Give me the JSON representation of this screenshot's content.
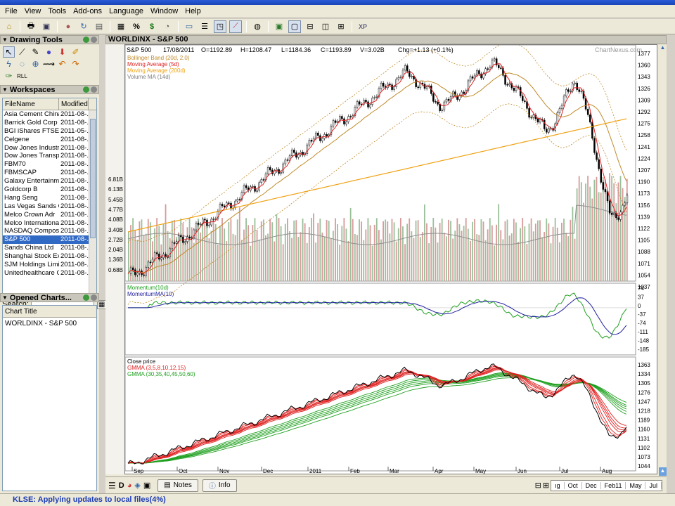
{
  "menu": [
    "File",
    "View",
    "Tools",
    "Add-ons",
    "Language",
    "Window",
    "Help"
  ],
  "drawing_tools": {
    "title": "Drawing Tools"
  },
  "workspaces": {
    "title": "Workspaces",
    "col_file": "FileName",
    "col_modified": "Modified",
    "rows": [
      {
        "name": "Asia Cement China ...",
        "modified": "2011-08-..."
      },
      {
        "name": "Barrick Gold Corp",
        "modified": "2011-08-..."
      },
      {
        "name": "BGI iShares FTSE ...",
        "modified": "2011-05-..."
      },
      {
        "name": "Celgene",
        "modified": "2011-08-..."
      },
      {
        "name": "Dow Jones Industrial",
        "modified": "2011-08-..."
      },
      {
        "name": "Dow Jones Transp...",
        "modified": "2011-08-..."
      },
      {
        "name": "FBM70",
        "modified": "2011-08-..."
      },
      {
        "name": "FBMSCAP",
        "modified": "2011-08-..."
      },
      {
        "name": "Galaxy Entertainme...",
        "modified": "2011-08-..."
      },
      {
        "name": "Goldcorp B",
        "modified": "2011-08-..."
      },
      {
        "name": "Hang Seng",
        "modified": "2011-08-..."
      },
      {
        "name": "Las Vegas Sands Cp",
        "modified": "2011-08-..."
      },
      {
        "name": "Melco Crown Adr",
        "modified": "2011-08-..."
      },
      {
        "name": "Melco International ...",
        "modified": "2011-08-..."
      },
      {
        "name": "NASDAQ Composite",
        "modified": "2011-08-..."
      },
      {
        "name": "S&P 500",
        "modified": "2011-08-...",
        "selected": true
      },
      {
        "name": "Sands China Ltd",
        "modified": "2011-08-..."
      },
      {
        "name": "Shanghai Stock Ex...",
        "modified": "2011-08-..."
      },
      {
        "name": "SJM Holdings Limited",
        "modified": "2011-08-..."
      },
      {
        "name": "Unitedhealthcare G...",
        "modified": "2011-08-..."
      }
    ],
    "search_label": "Search:"
  },
  "opened_charts": {
    "title": "Opened Charts...",
    "col": "Chart Title",
    "items": [
      "WORLDINX - S&P 500"
    ]
  },
  "chart_window": {
    "title": "WORLDINX - S&P 500"
  },
  "quote": {
    "symbol": "S&P 500",
    "date": "17/08/2011",
    "open": "O=1192.89",
    "high": "H=1208.47",
    "low": "L=1184.36",
    "close": "C=1193.89",
    "volume": "V=3.02B",
    "change": "Chg=+1.13 (+0.1%)",
    "watermark": "ChartNexus.com"
  },
  "legends": {
    "price": [
      {
        "text": "Bollinger Band (20d, 2.0)",
        "color": "#c08a2a"
      },
      {
        "text": "Moving Average (5d)",
        "color": "#e02020"
      },
      {
        "text": "Moving Average (200d)",
        "color": "#f0a010"
      },
      {
        "text": "Volume MA (14d)",
        "color": "#808080"
      }
    ],
    "momentum": [
      {
        "text": "Momentum(10d)",
        "color": "#20a020"
      },
      {
        "text": "MomentumMA(10)",
        "color": "#2020a0"
      }
    ],
    "gmma": [
      {
        "text": "Close price",
        "color": "#000000"
      },
      {
        "text": "GMMA (3,5,8,10,12,15)",
        "color": "#e02020"
      },
      {
        "text": "GMMA (30,35,40,45,50,60)",
        "color": "#20a020"
      }
    ]
  },
  "axes": {
    "price_ticks": [
      "1377",
      "1360",
      "1343",
      "1326",
      "1309",
      "1292",
      "1275",
      "1258",
      "1241",
      "1224",
      "1207",
      "1190",
      "1173",
      "1156",
      "1139",
      "1122",
      "1105",
      "1088",
      "1071",
      "1054",
      "1037"
    ],
    "volume_ticks": [
      "6.81B",
      "6.13B",
      "5.45B",
      "4.77B",
      "4.08B",
      "3.40B",
      "2.72B",
      "2.04B",
      "1.36B",
      "0.68B"
    ],
    "momentum_ticks": [
      "74",
      "37",
      "0",
      "-37",
      "-74",
      "-111",
      "-148",
      "-185"
    ],
    "gmma_ticks": [
      "1363",
      "1334",
      "1305",
      "1276",
      "1247",
      "1218",
      "1189",
      "1160",
      "1131",
      "1102",
      "1073",
      "1044"
    ],
    "months": [
      "Sep",
      "Oct",
      "Nov",
      "Dec",
      "2011",
      "Feb",
      "Mar",
      "Apr",
      "May",
      "Jun",
      "Jul",
      "Aug"
    ],
    "nav_months": [
      "ıg",
      "Oct",
      "Dec",
      "Feb11",
      "May",
      "Jul"
    ]
  },
  "bottom_buttons": {
    "notes": "Notes",
    "info": "Info"
  },
  "status": "KLSE: Applying updates to local files(4%)"
}
